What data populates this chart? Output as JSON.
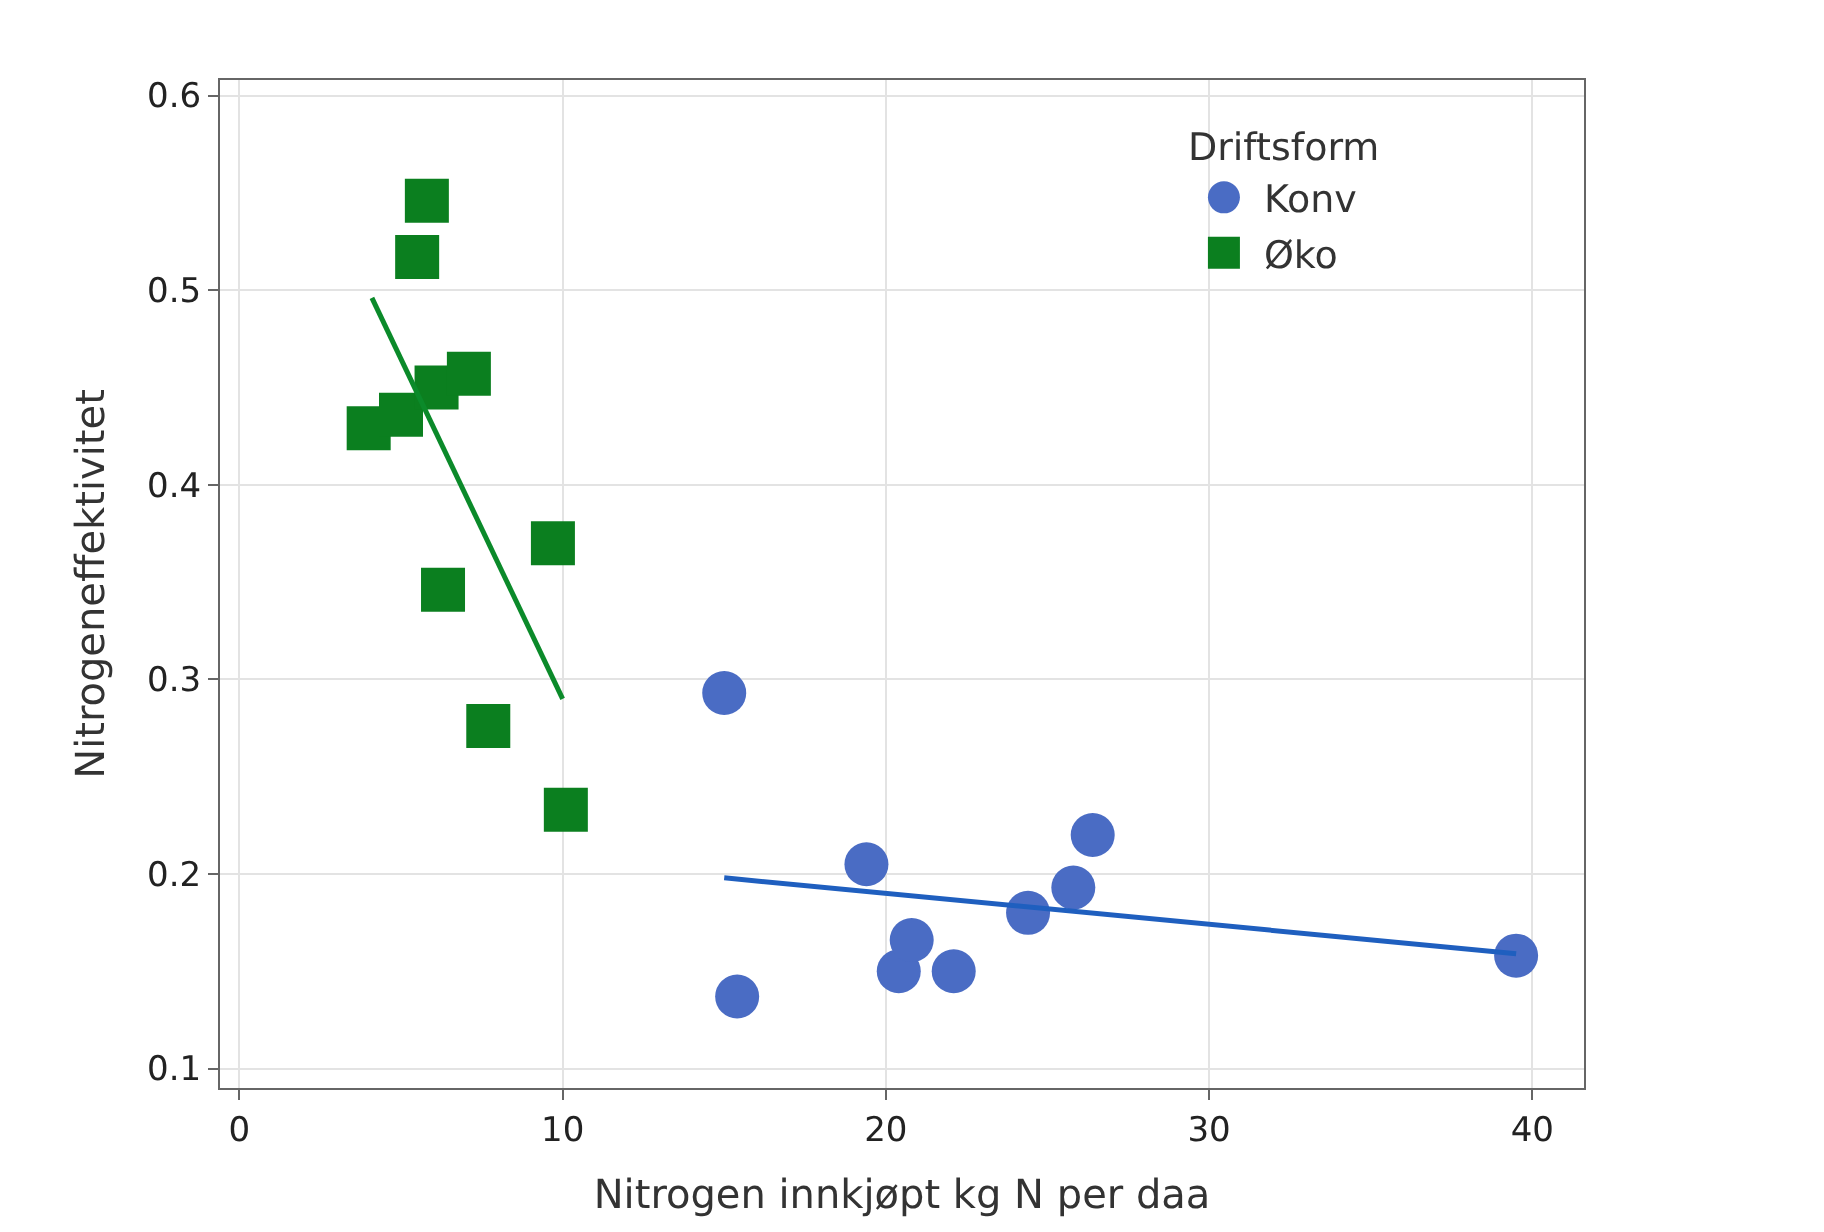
{
  "chart_data": {
    "type": "scatter",
    "xlabel": "Nitrogen innkjøpt kg N per daa",
    "ylabel": "Nitrogeneffektivitet",
    "legend_title": "Driftsform",
    "series": [
      {
        "name": "Konv",
        "color": "#4a6cc4",
        "marker": "circle",
        "x": [
          15.0,
          15.4,
          19.4,
          20.4,
          20.8,
          22.1,
          24.4,
          25.8,
          26.4,
          39.5
        ],
        "values": [
          0.293,
          0.137,
          0.205,
          0.15,
          0.166,
          0.15,
          0.18,
          0.193,
          0.22,
          0.158
        ]
      },
      {
        "name": "Øko",
        "color": "#0b7f1f",
        "marker": "square",
        "x": [
          4.0,
          5.0,
          5.5,
          5.8,
          6.1,
          6.3,
          7.1,
          7.7,
          9.7,
          10.1
        ],
        "values": [
          0.429,
          0.436,
          0.517,
          0.546,
          0.45,
          0.346,
          0.457,
          0.276,
          0.37,
          0.233
        ]
      },
      {
        "type": "line",
        "color": "#1f5fbf",
        "marker": "none",
        "x": [
          15.0,
          39.5
        ],
        "values": [
          0.198,
          0.159
        ]
      },
      {
        "type": "line",
        "color": "#0b8a2a",
        "marker": "none",
        "x": [
          4.1,
          10.0
        ],
        "values": [
          0.496,
          0.29
        ]
      }
    ],
    "xlim": [
      -0.6,
      41.6
    ],
    "xticks": [
      0,
      10,
      20,
      30,
      40
    ],
    "ylim": [
      0.09,
      0.608
    ],
    "yticks": [
      0.1,
      0.2,
      0.3,
      0.4,
      0.5,
      0.6
    ],
    "grid": true,
    "legend": "top right"
  }
}
